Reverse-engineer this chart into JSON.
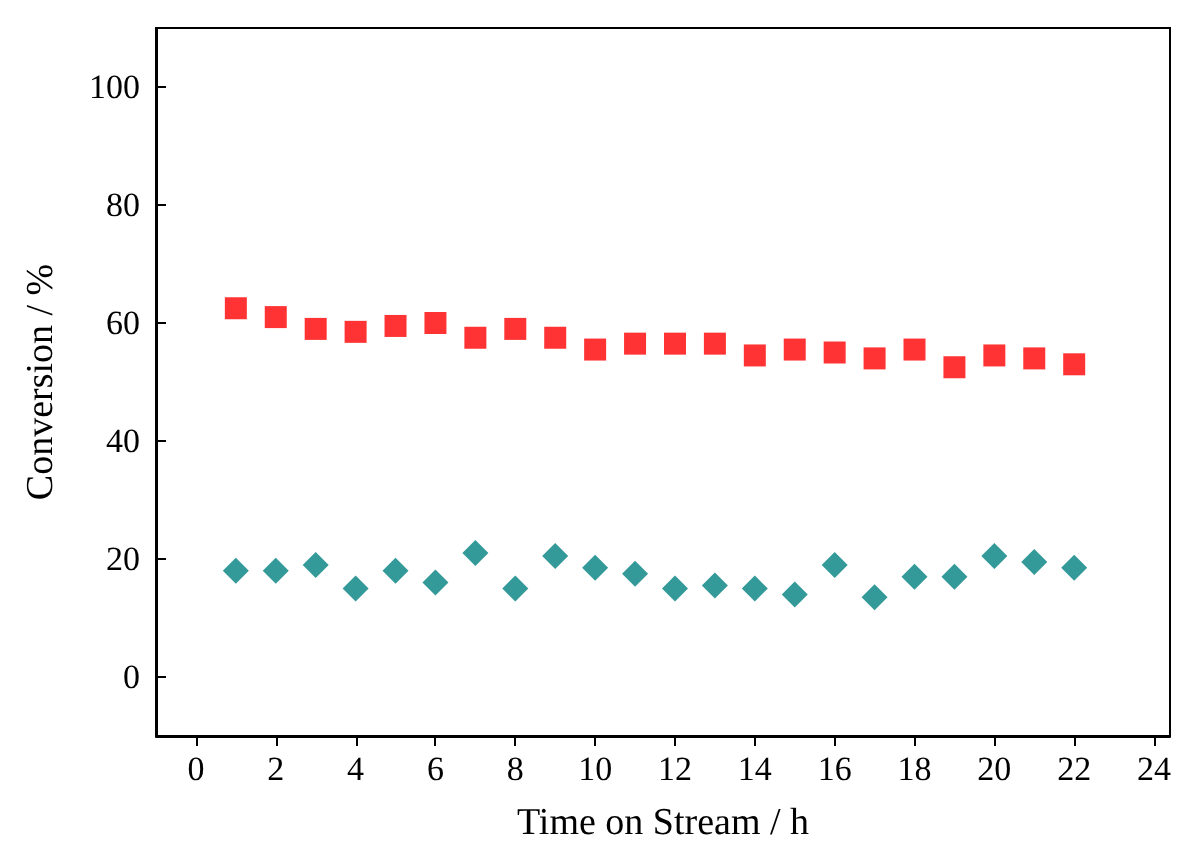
{
  "chart_data": {
    "type": "scatter",
    "xlabel": "Time on Stream / h",
    "ylabel": "Conversion / %",
    "x": [
      1,
      2,
      3,
      4,
      5,
      6,
      7,
      8,
      9,
      10,
      11,
      12,
      13,
      14,
      15,
      16,
      17,
      18,
      19,
      20,
      21,
      22
    ],
    "series": [
      {
        "color": "#ff0000",
        "marker": "square",
        "values": [
          62.5,
          61,
          59,
          58.5,
          59.5,
          60,
          57.5,
          59,
          57.5,
          55.5,
          56.5,
          56.5,
          56.5,
          54.5,
          55.5,
          55,
          54,
          55.5,
          52.5,
          54.5,
          54,
          53
        ]
      },
      {
        "color": "#008080",
        "marker": "diamond",
        "values": [
          18,
          18,
          19,
          15,
          18,
          16,
          21,
          15,
          20.5,
          18.5,
          17.5,
          15,
          15.5,
          15,
          14,
          19,
          13.5,
          17,
          17,
          20.5,
          19.5,
          18.5
        ]
      }
    ],
    "xlim": [
      -1,
      24.4
    ],
    "ylim": [
      -10,
      110
    ],
    "xticks": [
      0,
      2,
      4,
      6,
      8,
      10,
      12,
      14,
      16,
      18,
      20,
      22,
      24
    ],
    "yticks": [
      0,
      20,
      40,
      60,
      80,
      100
    ]
  }
}
